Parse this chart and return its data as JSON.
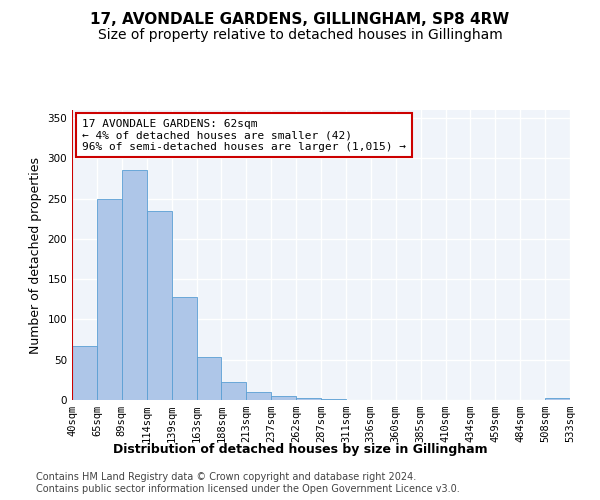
{
  "title1": "17, AVONDALE GARDENS, GILLINGHAM, SP8 4RW",
  "title2": "Size of property relative to detached houses in Gillingham",
  "xlabel": "Distribution of detached houses by size in Gillingham",
  "ylabel": "Number of detached properties",
  "bins": [
    "40sqm",
    "65sqm",
    "89sqm",
    "114sqm",
    "139sqm",
    "163sqm",
    "188sqm",
    "213sqm",
    "237sqm",
    "262sqm",
    "287sqm",
    "311sqm",
    "336sqm",
    "360sqm",
    "385sqm",
    "410sqm",
    "434sqm",
    "459sqm",
    "484sqm",
    "508sqm",
    "533sqm"
  ],
  "values": [
    67,
    250,
    285,
    235,
    128,
    53,
    22,
    10,
    5,
    2,
    1,
    0,
    0,
    0,
    0,
    0,
    0,
    0,
    0,
    3
  ],
  "bar_color": "#aec6e8",
  "bar_edge_color": "#5a9fd4",
  "annotation_box_color": "#ffffff",
  "annotation_box_edge": "#cc0000",
  "vline_color": "#cc0000",
  "annotation_line1": "17 AVONDALE GARDENS: 62sqm",
  "annotation_line2": "← 4% of detached houses are smaller (42)",
  "annotation_line3": "96% of semi-detached houses are larger (1,015) →",
  "footer1": "Contains HM Land Registry data © Crown copyright and database right 2024.",
  "footer2": "Contains public sector information licensed under the Open Government Licence v3.0.",
  "ylim": [
    0,
    360
  ],
  "yticks": [
    0,
    50,
    100,
    150,
    200,
    250,
    300,
    350
  ],
  "bg_color": "#f0f4fa",
  "grid_color": "#ffffff",
  "title1_fontsize": 11,
  "title2_fontsize": 10,
  "xlabel_fontsize": 9,
  "ylabel_fontsize": 9,
  "tick_fontsize": 7.5,
  "annotation_fontsize": 8,
  "footer_fontsize": 7
}
